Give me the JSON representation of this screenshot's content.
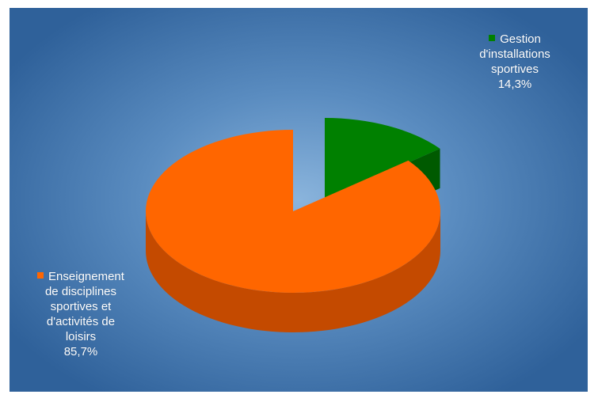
{
  "chart_data": {
    "type": "pie",
    "title": "",
    "legend": "inline-labels",
    "slices": [
      {
        "label_lines": [
          "Gestion",
          "d'installations",
          "sportives"
        ],
        "percent_label": "14,3%",
        "value": 14.3,
        "color": "#008000",
        "side_color": "#005a00"
      },
      {
        "label_lines": [
          "Enseignement",
          "de disciplines",
          "sportives et",
          "d'activités de",
          "loisirs"
        ],
        "percent_label": "85,7%",
        "value": 85.7,
        "color": "#ff6600",
        "side_color": "#c44a00"
      }
    ]
  },
  "background": {
    "inner": "#8ab4dc",
    "outer": "#2f619a"
  }
}
